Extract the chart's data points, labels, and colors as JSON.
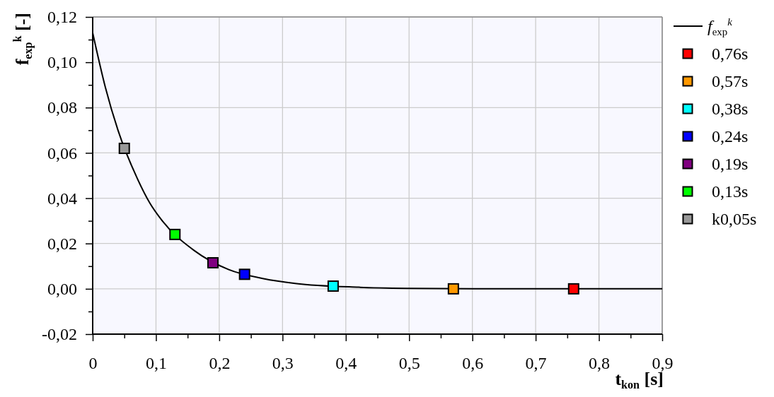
{
  "chart_data": {
    "type": "scatter",
    "xlabel": "t$_{kon}$ [s]",
    "ylabel": "f$_{exp}$$^{k}$ [-]",
    "xlim": [
      0,
      0.9
    ],
    "ylim": [
      -0.02,
      0.12
    ],
    "xticks": [
      0,
      {
        "value": 0.05,
        "label": null
      },
      {
        "value": 0.1,
        "label": "0,1"
      },
      {
        "value": 0.15,
        "label": null
      },
      {
        "value": 0.2,
        "label": "0,2"
      },
      {
        "value": 0.25,
        "label": null
      },
      {
        "value": 0.3,
        "label": "0,3"
      },
      {
        "value": 0.35,
        "label": null
      },
      {
        "value": 0.4,
        "label": "0,4"
      },
      {
        "value": 0.45,
        "label": null
      },
      {
        "value": 0.5,
        "label": "0,5"
      },
      {
        "value": 0.55,
        "label": null
      },
      {
        "value": 0.6,
        "label": "0,6"
      },
      {
        "value": 0.65,
        "label": null
      },
      {
        "value": 0.7,
        "label": "0,7"
      },
      {
        "value": 0.75,
        "label": null
      },
      {
        "value": 0.8,
        "label": "0,8"
      },
      {
        "value": 0.85,
        "label": null
      },
      {
        "value": 0.9,
        "label": "0,9"
      }
    ],
    "yticks": [
      {
        "value": -0.02,
        "label": "-0,02"
      },
      {
        "value": -0.01,
        "label": null
      },
      {
        "value": 0,
        "label": "0,00"
      },
      {
        "value": 0.01,
        "label": null
      },
      {
        "value": 0.02,
        "label": "0,02"
      },
      {
        "value": 0.03,
        "label": null
      },
      {
        "value": 0.04,
        "label": "0,04"
      },
      {
        "value": 0.05,
        "label": null
      },
      {
        "value": 0.06,
        "label": "0,06"
      },
      {
        "value": 0.07,
        "label": null
      },
      {
        "value": 0.08,
        "label": "0,08"
      },
      {
        "value": 0.09,
        "label": null
      },
      {
        "value": 0.1,
        "label": "0,10"
      },
      {
        "value": 0.11,
        "label": null
      },
      {
        "value": 0.12,
        "label": "0,12"
      }
    ],
    "grid": true,
    "legend": "right",
    "marker": "square",
    "series": [
      {
        "name": "f$_{exp}$$^{k}$",
        "type": "line",
        "color": "#000000",
        "marker": "none",
        "x": [
          0,
          0.02,
          0.04,
          0.07,
          0.09,
          0.11,
          0.16,
          0.215,
          0.27,
          0.32,
          0.42,
          0.5,
          0.6,
          0.7,
          0.8,
          0.9
        ],
        "values": [
          0.113,
          0.089,
          0.07,
          0.049,
          0.038,
          0.03,
          0.017,
          0.0085,
          0.0045,
          0.0024,
          0.0007,
          0.0002,
          0,
          0,
          0,
          0
        ]
      },
      {
        "name": "0,76s",
        "color": "#ff0000",
        "x": [
          0.76
        ],
        "values": [
          0
        ]
      },
      {
        "name": "0,57s",
        "color": "#ff9900",
        "x": [
          0.57
        ],
        "values": [
          0
        ]
      },
      {
        "name": "0,38s",
        "color": "#00ffff",
        "x": [
          0.38
        ],
        "values": [
          0.0012
        ]
      },
      {
        "name": "0,24s",
        "color": "#0000ff",
        "x": [
          0.24
        ],
        "values": [
          0.0064
        ]
      },
      {
        "name": "0,19s",
        "color": "#800080",
        "x": [
          0.19
        ],
        "values": [
          0.0115
        ]
      },
      {
        "name": "0,13s",
        "color": "#00ff00",
        "x": [
          0.13
        ],
        "values": [
          0.024
        ]
      },
      {
        "name": "k0,05s",
        "color": "#999999",
        "x": [
          0.05
        ],
        "values": [
          0.062
        ]
      }
    ]
  }
}
